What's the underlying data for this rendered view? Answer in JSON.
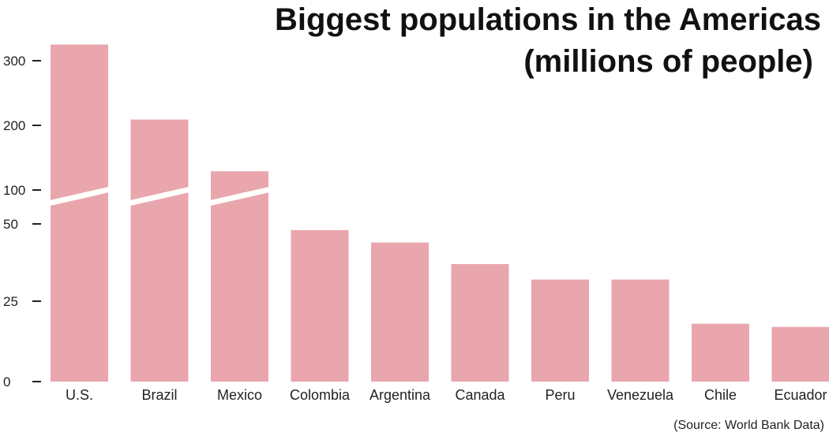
{
  "chart_data": {
    "type": "bar",
    "title_lines": [
      "Biggest populations in the Americas",
      "(millions of people)"
    ],
    "source": "(Source: World Bank Data)",
    "categories": [
      "U.S.",
      "Brazil",
      "Mexico",
      "Colombia",
      "Argentina",
      "Canada",
      "Peru",
      "Venezuela",
      "Chile",
      "Ecuador"
    ],
    "values": [
      325,
      209,
      129,
      48,
      44,
      37,
      32,
      32,
      18,
      17
    ],
    "y_ticks": [
      0,
      25,
      50,
      100,
      200,
      300
    ],
    "y_tick_labels": [
      "0",
      "25",
      "50",
      "100",
      "200",
      "300"
    ],
    "axis_break": true,
    "ylim": [
      0,
      325
    ],
    "grid": false,
    "legend": "none",
    "colors": {
      "bar": "#e9a6ad",
      "break": "#ffffff",
      "axis": "#222222"
    }
  }
}
